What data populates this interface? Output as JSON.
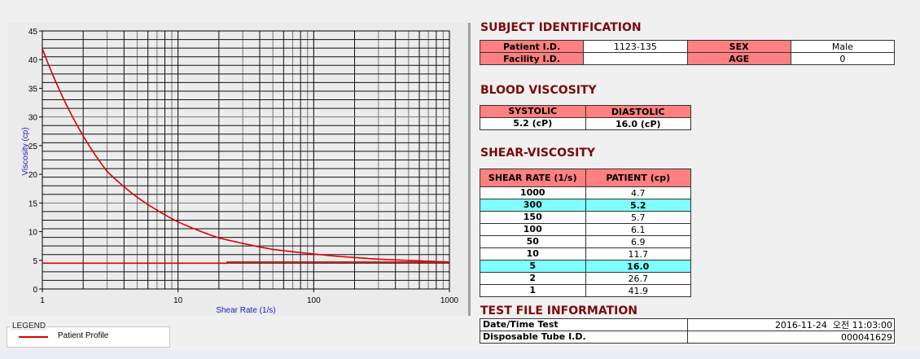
{
  "chart_data": {
    "type": "line",
    "xlabel": "Shear Rate (1/s)",
    "ylabel": "Viscosity (cp)",
    "xscale": "log",
    "xlim": [
      1,
      1000
    ],
    "ylim": [
      0,
      45
    ],
    "xticks": [
      "1",
      "10",
      "100",
      "1000"
    ],
    "yticks": [
      "0",
      "5",
      "10",
      "15",
      "20",
      "25",
      "30",
      "35",
      "40",
      "45"
    ],
    "grid": true,
    "legend": {
      "title": "LEGEND",
      "position": "bottom-left"
    },
    "series": [
      {
        "name": "Patient Profile",
        "color": "#dd0000",
        "x": [
          1,
          2,
          3,
          5,
          10,
          20,
          50,
          100,
          150,
          300,
          1000
        ],
        "y": [
          41.9,
          26.7,
          20.5,
          16.0,
          11.7,
          8.9,
          6.9,
          6.1,
          5.7,
          5.2,
          4.7
        ]
      },
      {
        "color": "#dd0000",
        "x": [
          1,
          23,
          23,
          1000
        ],
        "y": [
          4.5,
          4.5,
          4.7,
          4.7
        ]
      }
    ]
  },
  "subject": {
    "title": "SUBJECT IDENTIFICATION",
    "patient_id_label": "Patient I.D.",
    "patient_id": "1123-135",
    "sex_label": "SEX",
    "sex": "Male",
    "facility_label": "Facility I.D.",
    "facility": "",
    "age_label": "AGE",
    "age": "0"
  },
  "blood": {
    "title": "BLOOD VISCOSITY",
    "systolic_label": "SYSTOLIC",
    "diastolic_label": "DIASTOLIC",
    "systolic": "5.2 (cP)",
    "diastolic": "16.0 (cP)"
  },
  "shear": {
    "title": "SHEAR-VISCOSITY",
    "col1": "SHEAR RATE (1/s)",
    "col2": "PATIENT (cp)",
    "highlight_color": "#80ffff",
    "rows": [
      [
        "1000",
        "4.7"
      ],
      [
        "300",
        "5.2"
      ],
      [
        "150",
        "5.7"
      ],
      [
        "100",
        "6.1"
      ],
      [
        "50",
        "6.9"
      ],
      [
        "10",
        "11.7"
      ],
      [
        "5",
        "16.0"
      ],
      [
        "2",
        "26.7"
      ],
      [
        "1",
        "41.9"
      ]
    ]
  },
  "testfile": {
    "title": "TEST FILE INFORMATION",
    "date_label": "Date/Time Test",
    "date": "2016-11-24  오전 11:03:00",
    "tube_label": "Disposable Tube I.D.",
    "tube": "000041629"
  }
}
